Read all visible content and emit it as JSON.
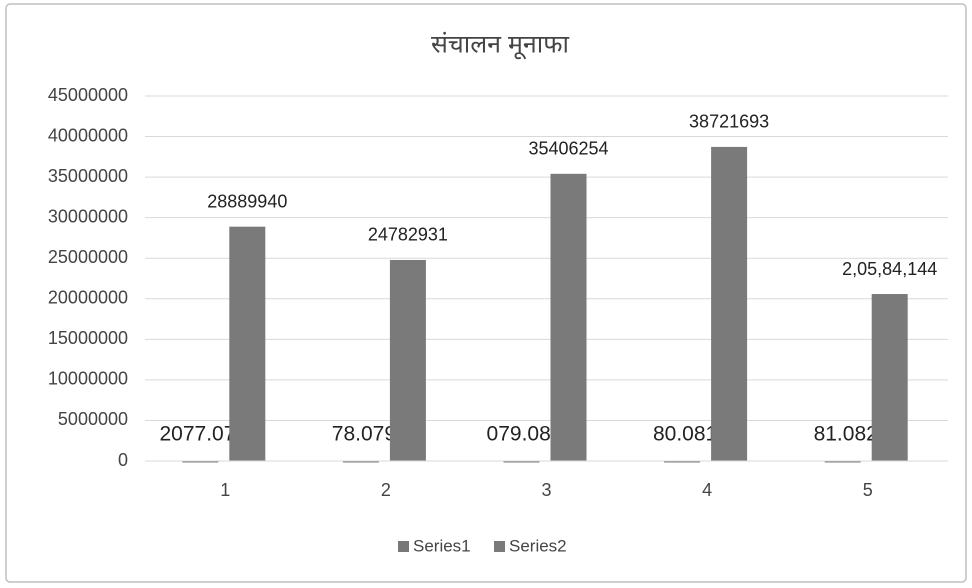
{
  "chart_data": {
    "type": "bar",
    "title": "संचालन मूनाफा",
    "categories": [
      "1",
      "2",
      "3",
      "4",
      "5"
    ],
    "series": [
      {
        "name": "Series1",
        "color": "#787878",
        "values": [
          2077.078,
          78.079,
          79.08,
          80.081,
          81.082
        ],
        "value_labels": [
          "2077.078",
          "78.079",
          "079.080",
          "80.081",
          "81.082"
        ]
      },
      {
        "name": "Series2",
        "color": "#7a7a7a",
        "values": [
          28889940,
          24782931,
          35406254,
          38721693,
          20584144
        ],
        "value_labels": [
          "28889940",
          "24782931",
          "35406254",
          "38721693",
          "2,05,84,144"
        ]
      }
    ],
    "ylim": [
      0,
      45000000
    ],
    "yticks": [
      0,
      5000000,
      10000000,
      15000000,
      20000000,
      25000000,
      30000000,
      35000000,
      40000000,
      45000000
    ],
    "grid": true,
    "legend": "bottom"
  }
}
